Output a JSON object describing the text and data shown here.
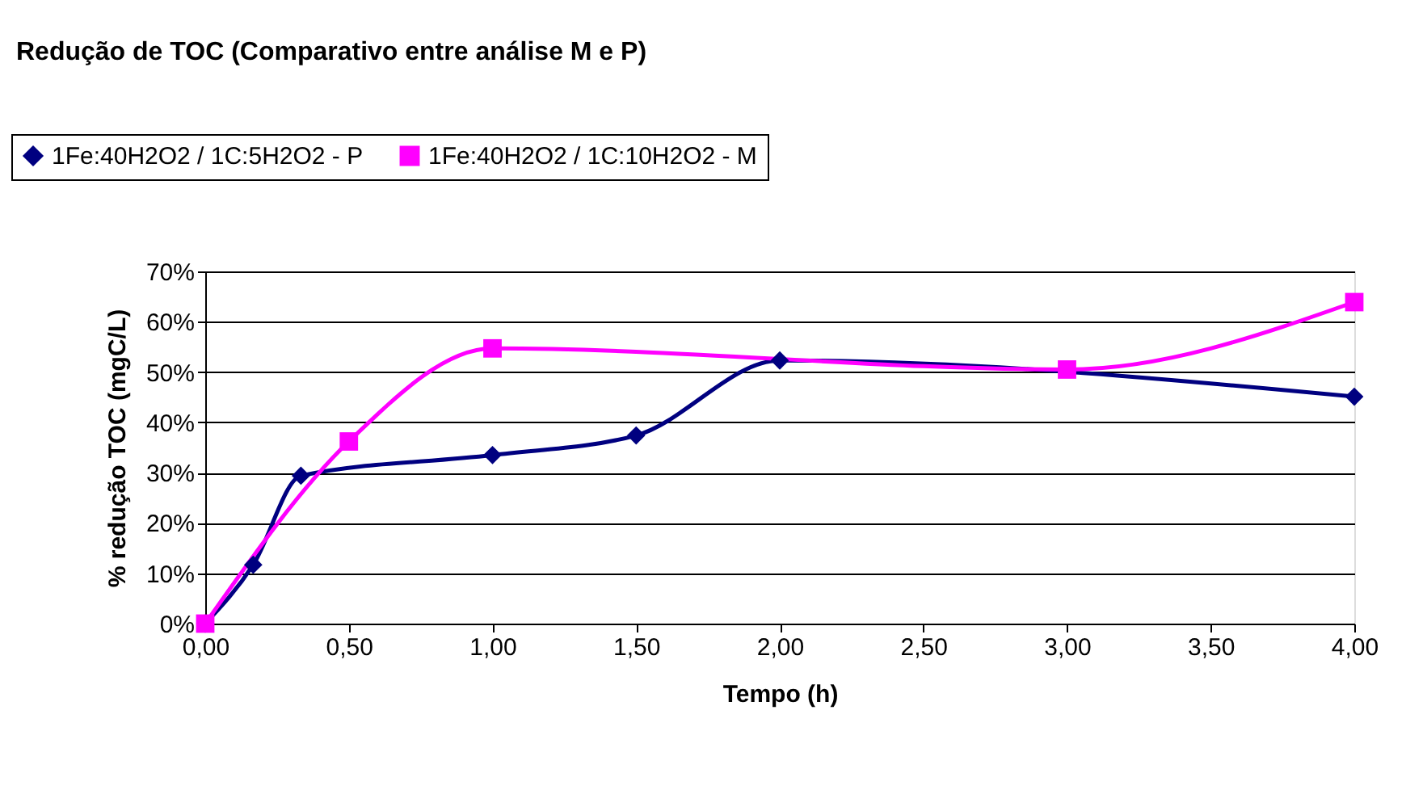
{
  "chart_data": {
    "type": "line",
    "title": "Redução de TOC (Comparativo entre análise M e P)",
    "xlabel": "Tempo (h)",
    "ylabel": "% redução TOC (mgC/L)",
    "series": [
      {
        "name": "1Fe:40H2O2 / 1C:5H2O2 - P",
        "color": "#000080",
        "marker": "diamond",
        "x": [
          0,
          0.167,
          0.333,
          1.0,
          1.5,
          2.0,
          4.0
        ],
        "values": [
          0,
          11.7,
          29.4,
          33.5,
          37.4,
          52.3,
          45.1
        ]
      },
      {
        "name": "1Fe:40H2O2 / 1C:10H2O2 - M",
        "color": "#ff00ff",
        "marker": "square",
        "x": [
          0,
          0.5,
          1.0,
          3.0,
          4.0
        ],
        "values": [
          0,
          36.2,
          54.7,
          50.5,
          63.9
        ]
      }
    ],
    "xlim": [
      0,
      4
    ],
    "xticks": [
      {
        "value": 0,
        "label": "0,00"
      },
      {
        "value": 0.5,
        "label": "0,50"
      },
      {
        "value": 1,
        "label": "1,00"
      },
      {
        "value": 1.5,
        "label": "1,50"
      },
      {
        "value": 2,
        "label": "2,00"
      },
      {
        "value": 2.5,
        "label": "2,50"
      },
      {
        "value": 3,
        "label": "3,00"
      },
      {
        "value": 3.5,
        "label": "3,50"
      },
      {
        "value": 4,
        "label": "4,00"
      }
    ],
    "ylim": [
      0,
      70
    ],
    "yticks": [
      {
        "value": 0,
        "label": "0%"
      },
      {
        "value": 10,
        "label": "10%"
      },
      {
        "value": 20,
        "label": "20%"
      },
      {
        "value": 30,
        "label": "30%"
      },
      {
        "value": 40,
        "label": "40%"
      },
      {
        "value": 50,
        "label": "50%"
      },
      {
        "value": 60,
        "label": "60%"
      },
      {
        "value": 70,
        "label": "70%"
      }
    ],
    "grid": "y",
    "legend": "top left",
    "line_style": "solid"
  }
}
